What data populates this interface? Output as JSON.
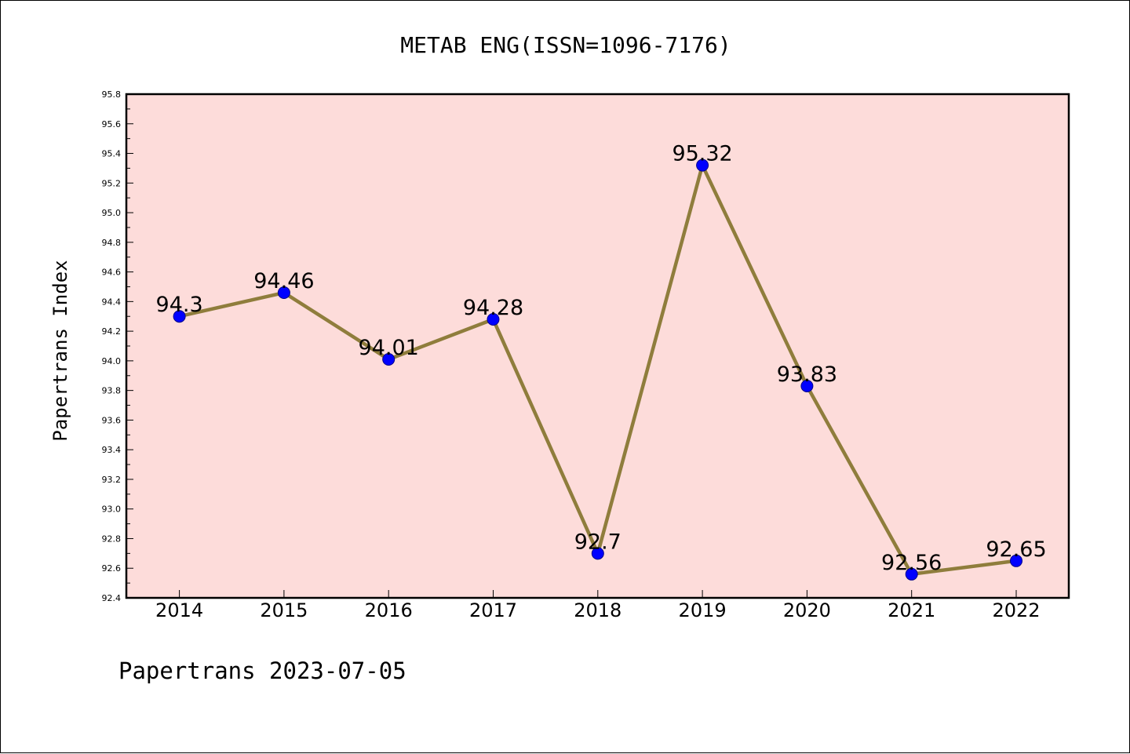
{
  "chart_data": {
    "type": "line",
    "title": "METAB ENG(ISSN=1096-7176)",
    "ylabel": "Papertrans Index",
    "xlabel": "",
    "categories": [
      "2014",
      "2015",
      "2016",
      "2017",
      "2018",
      "2019",
      "2020",
      "2021",
      "2022"
    ],
    "values": [
      94.3,
      94.46,
      94.01,
      94.28,
      92.7,
      95.32,
      93.83,
      92.56,
      92.65
    ],
    "data_labels": [
      "94.3",
      "94.46",
      "94.01",
      "94.28",
      "92.7",
      "95.32",
      "93.83",
      "92.56",
      "92.65"
    ],
    "ylim": [
      92.4,
      95.8
    ],
    "yticks": [
      "92.4",
      "92.6",
      "92.8",
      "93.0",
      "93.2",
      "93.4",
      "93.6",
      "93.8",
      "94.0",
      "94.2",
      "94.4",
      "94.6",
      "94.8",
      "95.0",
      "95.2",
      "95.4",
      "95.6",
      "95.8"
    ],
    "grid": false,
    "colors": {
      "plot_background": "#FDDCDA",
      "line": "#8F7D3C",
      "marker": "#0000FF"
    }
  },
  "footer": {
    "text": "Papertrans 2023-07-05"
  }
}
